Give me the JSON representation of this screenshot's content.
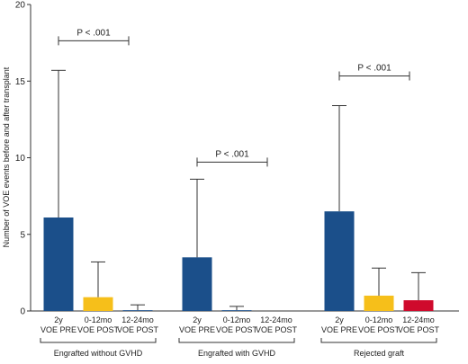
{
  "chart_data": {
    "type": "bar",
    "ylabel": "Number of VOE events before and after transplant",
    "ylim": [
      0,
      20
    ],
    "yticks": [
      0,
      5,
      10,
      15,
      20
    ],
    "groups": [
      {
        "label": "Engrafted without GVHD",
        "significance": "P < .001",
        "bars": [
          {
            "label_line1": "2y",
            "label_line2": "VOE PRE",
            "value": 6.1,
            "error_upper": 15.7,
            "color": "#1b4f8a"
          },
          {
            "label_line1": "0-12mo",
            "label_line2": "VOE POST",
            "value": 0.9,
            "error_upper": 3.2,
            "color": "#f6bf1a"
          },
          {
            "label_line1": "12-24mo",
            "label_line2": "VOE POST",
            "value": 0.05,
            "error_upper": 0.4,
            "color": "#1b4f8a"
          }
        ]
      },
      {
        "label": "Engrafted with GVHD",
        "significance": "P < .001",
        "bars": [
          {
            "label_line1": "2y",
            "label_line2": "VOE PRE",
            "value": 3.5,
            "error_upper": 8.6,
            "color": "#1b4f8a"
          },
          {
            "label_line1": "0-12mo",
            "label_line2": "VOE POST",
            "value": 0.05,
            "error_upper": 0.3,
            "color": "#1b4f8a"
          },
          {
            "label_line1": "12-24mo",
            "label_line2": "VOE POST",
            "value": 0,
            "error_upper": 0,
            "color": "#1b4f8a"
          }
        ]
      },
      {
        "label": "Rejected graft",
        "significance": "P < .001",
        "bars": [
          {
            "label_line1": "2y",
            "label_line2": "VOE PRE",
            "value": 6.5,
            "error_upper": 13.4,
            "color": "#1b4f8a"
          },
          {
            "label_line1": "0-12mo",
            "label_line2": "VOE POST",
            "value": 1.0,
            "error_upper": 2.8,
            "color": "#f6bf1a"
          },
          {
            "label_line1": "12-24mo",
            "label_line2": "VOE POST",
            "value": 0.7,
            "error_upper": 2.5,
            "color": "#cf0a2c"
          }
        ]
      }
    ]
  }
}
